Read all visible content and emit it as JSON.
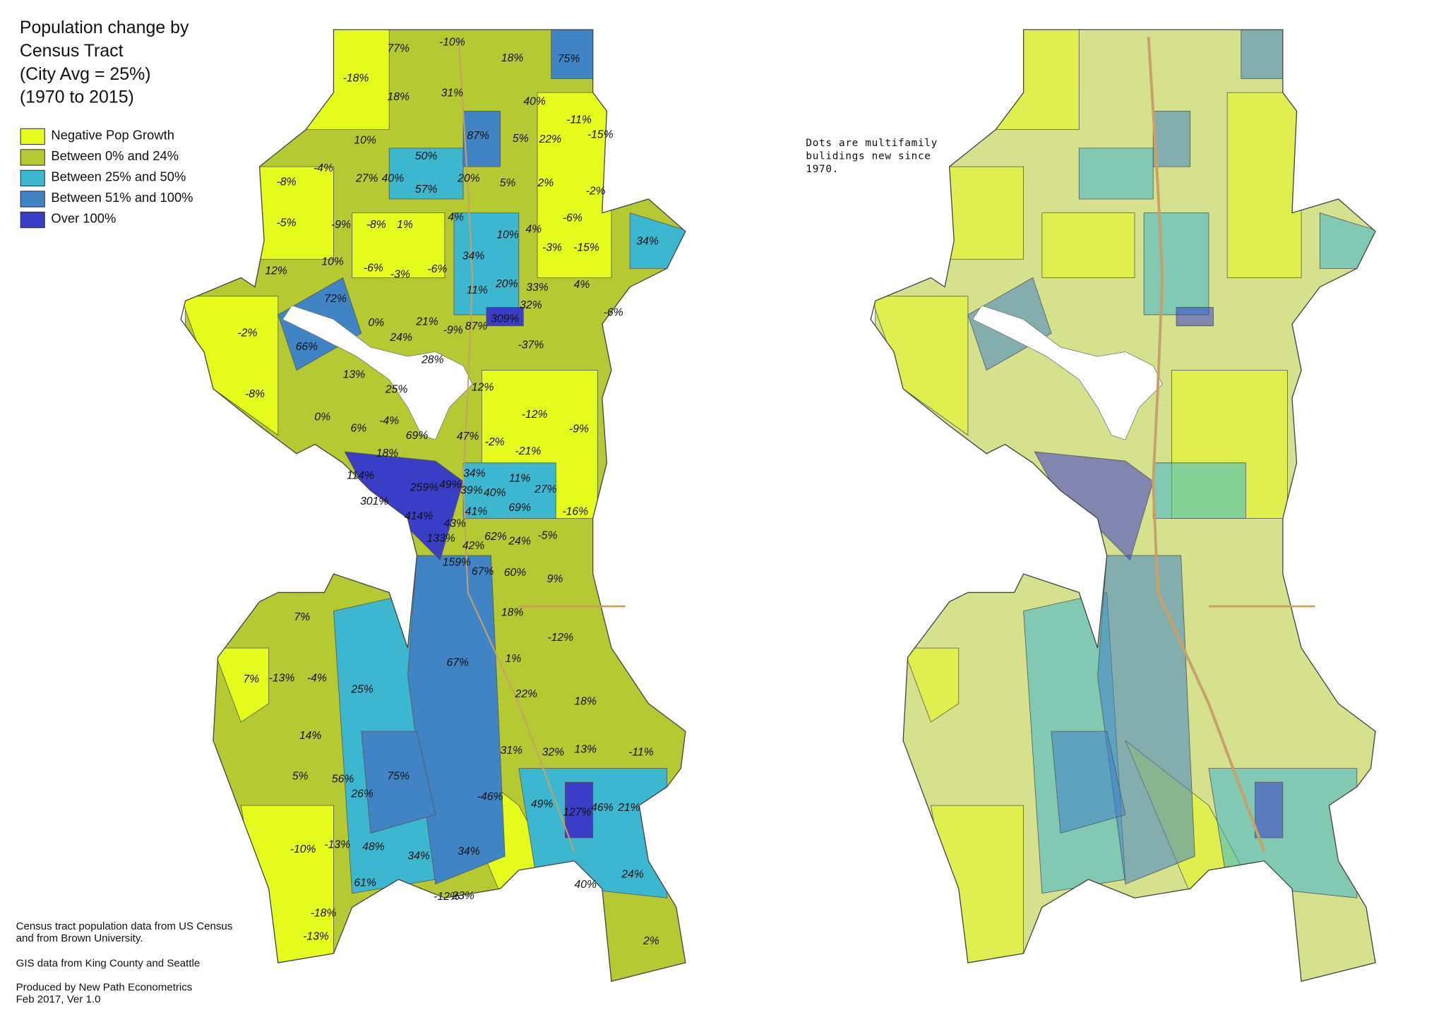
{
  "title": [
    "Population change by",
    "Census Tract",
    "(City Avg = 25%)",
    "(1970 to 2015)"
  ],
  "legend": [
    {
      "label": "Negative Pop Growth",
      "color": "#e6fc1c"
    },
    {
      "label": "Between 0% and 24%",
      "color": "#b4c932"
    },
    {
      "label": "Between 25% and 50%",
      "color": "#3db6cf"
    },
    {
      "label": "Between 51% and 100%",
      "color": "#4184c6"
    },
    {
      "label": "Over 100%",
      "color": "#3a3dc6"
    }
  ],
  "tract_labels": [
    "77%",
    "-10%",
    "18%",
    "75%",
    "-18%",
    "18%",
    "31%",
    "40%",
    "-11%",
    "-15%",
    "10%",
    "87%",
    "5%",
    "22%",
    "50%",
    "-8%",
    "-4%",
    "27%",
    "40%",
    "57%",
    "20%",
    "5%",
    "2%",
    "-2%",
    "-5%",
    "-9%",
    "-8%",
    "1%",
    "4%",
    "-6%",
    "10%",
    "4%",
    "-3%",
    "-15%",
    "34%",
    "12%",
    "10%",
    "-6%",
    "-3%",
    "-6%",
    "34%",
    "11%",
    "20%",
    "33%",
    "4%",
    "72%",
    "32%",
    "309%",
    "-6%",
    "-2%",
    "0%",
    "21%",
    "-9%",
    "87%",
    "66%",
    "24%",
    "28%",
    "-37%",
    "13%",
    "25%",
    "-8%",
    "12%",
    "-12%",
    "-9%",
    "0%",
    "6%",
    "-4%",
    "69%",
    "47%",
    "-2%",
    "-21%",
    "18%",
    "114%",
    "259%",
    "49%",
    "34%",
    "11%",
    "27%",
    "39%",
    "40%",
    "301%",
    "41%",
    "69%",
    "-16%",
    "414%",
    "43%",
    "62%",
    "24%",
    "-5%",
    "133%",
    "42%",
    "159%",
    "67%",
    "60%",
    "9%",
    "18%",
    "7%",
    "-12%",
    "67%",
    "1%",
    "7%",
    "-13%",
    "-4%",
    "25%",
    "22%",
    "18%",
    "14%",
    "31%",
    "32%",
    "13%",
    "-11%",
    "5%",
    "56%",
    "75%",
    "26%",
    "-46%",
    "49%",
    "127%",
    "46%",
    "21%",
    "-10%",
    "-13%",
    "48%",
    "34%",
    "34%",
    "24%",
    "61%",
    "40%",
    "-12%",
    "23%",
    "-18%",
    "-13%",
    "2%"
  ],
  "credits": [
    "Census tract population data from US Census",
    "and from Brown University.",
    "GIS data from King County and Seattle",
    "Produced by New Path Econometrics",
    "Feb 2017, Ver 1.0"
  ],
  "note": [
    "Dots are multifamily",
    "bulidings new since",
    "1970."
  ]
}
